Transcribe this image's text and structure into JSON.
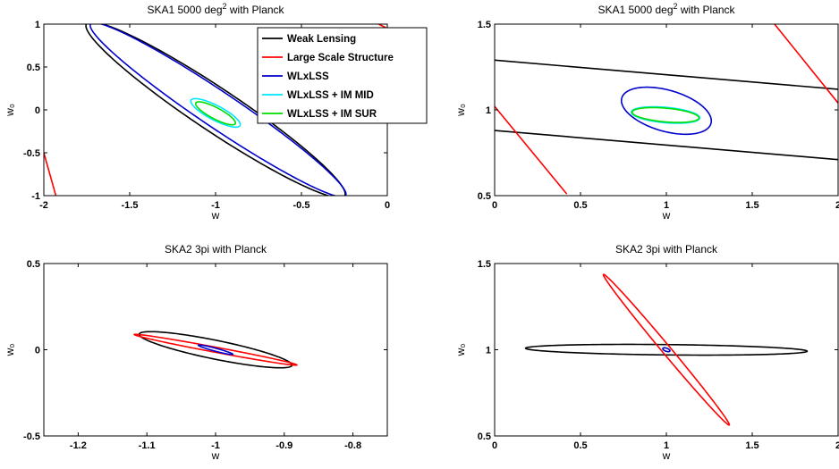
{
  "chart_data": [
    {
      "type": "line",
      "title": "SKA1 5000 deg² with Planck",
      "xlabel": "w",
      "ylabel": "w₀",
      "xlim": [
        -2,
        0
      ],
      "ylim": [
        -1,
        1
      ],
      "xticks": [
        -2,
        -1.5,
        -1,
        -0.5,
        0
      ],
      "yticks": [
        -1,
        -0.5,
        0,
        0.5,
        1
      ],
      "xtick_labels": [
        "-2",
        "-1.5",
        "-1",
        "-0.5",
        "0"
      ],
      "ytick_labels": [
        "-1",
        "-0.5",
        "0",
        "0.5",
        "1"
      ],
      "grid": false,
      "legend_position": "top-right",
      "legend": [
        {
          "label": "Weak Lensing",
          "color": "#000000"
        },
        {
          "label": "Large Scale Structure",
          "color": "#ff0000"
        },
        {
          "label": "WLxLSS",
          "color": "#0000cc"
        },
        {
          "label": "WLxLSS + IM MID",
          "color": "#00e5ff"
        },
        {
          "label": "WLxLSS + IM SUR",
          "color": "#00dd00"
        }
      ],
      "series": [
        {
          "name": "Weak Lensing",
          "kind": "ellipse",
          "center": [
            -1.0,
            0.0
          ],
          "a": 1.26,
          "b": 0.18,
          "angle_deg": -54,
          "color": "#000000"
        },
        {
          "name": "Large Scale Structure",
          "kind": "lines",
          "color": "#ff0000",
          "lines": [
            [
              [
                -2.0,
                -0.5
              ],
              [
                -1.93,
                -1.0
              ]
            ],
            [
              [
                -0.05,
                1.0
              ],
              [
                0.0,
                0.95
              ]
            ]
          ]
        },
        {
          "name": "WLxLSS",
          "kind": "ellipse",
          "center": [
            -0.985,
            0.0
          ],
          "a": 1.25,
          "b": 0.15,
          "angle_deg": -54,
          "color": "#0000cc"
        },
        {
          "name": "WLxLSS + IM MID",
          "kind": "ellipse",
          "center": [
            -1.0,
            -0.035
          ],
          "a": 0.21,
          "b": 0.065,
          "angle_deg": -50,
          "color": "#00e5ff"
        },
        {
          "name": "WLxLSS + IM SUR",
          "kind": "ellipse",
          "center": [
            -1.0,
            -0.04
          ],
          "a": 0.17,
          "b": 0.05,
          "angle_deg": -50,
          "color": "#00dd00"
        }
      ]
    },
    {
      "type": "line",
      "title": "SKA1 5000 deg² with Planck",
      "xlabel": "w",
      "ylabel": "w₀",
      "xlim": [
        0,
        2
      ],
      "ylim": [
        0.5,
        1.5
      ],
      "xticks": [
        0,
        0.5,
        1,
        1.5,
        2
      ],
      "yticks": [
        0.5,
        1,
        1.5
      ],
      "xtick_labels": [
        "0",
        "0.5",
        "1",
        "1.5",
        "2"
      ],
      "ytick_labels": [
        "0.5",
        "1",
        "1.5"
      ],
      "grid": false,
      "series": [
        {
          "name": "Weak Lensing",
          "kind": "lines",
          "color": "#000000",
          "lines": [
            [
              [
                0.0,
                1.29
              ],
              [
                2.0,
                1.12
              ]
            ],
            [
              [
                0.0,
                0.88
              ],
              [
                2.0,
                0.71
              ]
            ]
          ]
        },
        {
          "name": "Large Scale Structure",
          "kind": "lines",
          "color": "#ff0000",
          "lines": [
            [
              [
                0.0,
                1.02
              ],
              [
                0.42,
                0.51
              ]
            ],
            [
              [
                1.63,
                1.5
              ],
              [
                2.0,
                1.04
              ]
            ]
          ]
        },
        {
          "name": "WLxLSS",
          "kind": "ellipse",
          "center": [
            1.0,
            0.995
          ],
          "a": 0.27,
          "b": 0.12,
          "angle_deg": -16,
          "color": "#0000cc"
        },
        {
          "name": "WLxLSS + IM MID",
          "kind": "ellipse",
          "center": [
            0.995,
            0.97
          ],
          "a": 0.2,
          "b": 0.045,
          "angle_deg": -5,
          "color": "#00e5ff"
        },
        {
          "name": "WLxLSS + IM SUR",
          "kind": "ellipse",
          "center": [
            0.995,
            0.97
          ],
          "a": 0.195,
          "b": 0.04,
          "angle_deg": -5,
          "color": "#00dd00"
        }
      ]
    },
    {
      "type": "line",
      "title": "SKA2 3pi with Planck",
      "xlabel": "w",
      "ylabel": "w₀",
      "xlim": [
        -1.25,
        -0.75
      ],
      "ylim": [
        -0.5,
        0.5
      ],
      "xticks": [
        -1.2,
        -1.1,
        -1,
        -0.9,
        -0.8
      ],
      "yticks": [
        -0.5,
        0,
        0.5
      ],
      "xtick_labels": [
        "-1.2",
        "-1.1",
        "-1",
        "-0.9",
        "-0.8"
      ],
      "ytick_labels": [
        "-0.5",
        "0",
        "0.5"
      ],
      "grid": false,
      "series": [
        {
          "name": "Weak Lensing",
          "kind": "ellipse",
          "center": [
            -1.0,
            0.0
          ],
          "a": 0.147,
          "b": 0.042,
          "angle_deg": -43,
          "color": "#000000"
        },
        {
          "name": "Large Scale Structure",
          "kind": "ellipse",
          "center": [
            -1.0,
            0.0
          ],
          "a": 0.148,
          "b": 0.012,
          "angle_deg": -37,
          "color": "#ff0000"
        },
        {
          "name": "WLxLSS",
          "kind": "ellipse",
          "center": [
            -1.0,
            0.0
          ],
          "a": 0.037,
          "b": 0.006,
          "angle_deg": -48,
          "color": "#0000cc"
        }
      ]
    },
    {
      "type": "line",
      "title": "SKA2 3pi with Planck",
      "xlabel": "w",
      "ylabel": "w₀",
      "xlim": [
        0,
        2
      ],
      "ylim": [
        0.5,
        1.5
      ],
      "xticks": [
        0,
        0.5,
        1,
        1.5,
        2
      ],
      "yticks": [
        0.5,
        1,
        1.5
      ],
      "xtick_labels": [
        "0",
        "0.5",
        "1",
        "1.5",
        "2"
      ],
      "ytick_labels": [
        "0.5",
        "1",
        "1.5"
      ],
      "grid": false,
      "series": [
        {
          "name": "Weak Lensing",
          "kind": "ellipse",
          "center": [
            1.0,
            1.0
          ],
          "a": 0.82,
          "b": 0.03,
          "angle_deg": -0.6,
          "color": "#000000"
        },
        {
          "name": "Large Scale Structure",
          "kind": "ellipse",
          "center": [
            1.0,
            1.0
          ],
          "a": 0.57,
          "b": 0.025,
          "angle_deg": -50,
          "color": "#ff0000"
        },
        {
          "name": "WLxLSS",
          "kind": "ellipse",
          "center": [
            1.0,
            1.0
          ],
          "a": 0.022,
          "b": 0.009,
          "angle_deg": -20,
          "color": "#0000cc"
        }
      ]
    }
  ]
}
